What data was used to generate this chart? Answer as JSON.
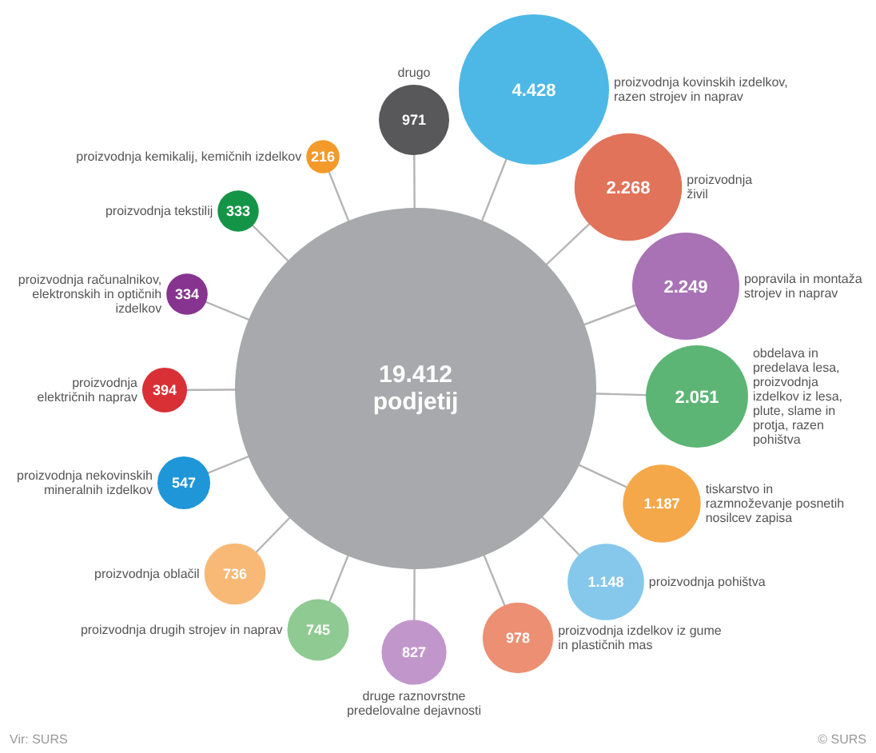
{
  "chart_data": {
    "type": "other",
    "categories": [
      "drugo",
      "proizvodnja kovinskih izdelkov, razen strojev in naprav",
      "proizvodnja živil",
      "popravila in montaža strojev in naprav",
      "obdelava in predelava lesa, proizvodnja izdelkov iz lesa, plute, slame in protja, razen pohištva",
      "tiskarstvo in razmnoževanje posnetih nosilcev zapisa",
      "proizvodnja pohištva",
      "proizvodnja izdelkov iz gume in plastičnih mas",
      "druge raznovrstne predelovalne dejavnosti",
      "proizvodnja drugih strojev in naprav",
      "proizvodnja oblačil",
      "proizvodnja nekovinskih mineralnih izdelkov",
      "proizvodnja električnih naprav",
      "proizvodnja računalnikov, elektronskih in optičnih izdelkov",
      "proizvodnja tekstilij",
      "proizvodnja kemikalij, kemičnih izdelkov"
    ],
    "values": [
      971,
      4428,
      2268,
      2249,
      2051,
      1187,
      1148,
      978,
      827,
      745,
      736,
      547,
      394,
      334,
      333,
      216
    ],
    "value_labels": [
      "971",
      "4.428",
      "2.268",
      "2.249",
      "2.051",
      "1.187",
      "1.148",
      "978",
      "827",
      "745",
      "736",
      "547",
      "394",
      "334",
      "333",
      "216"
    ],
    "colors": [
      "#58585a",
      "#4db8e6",
      "#e0735a",
      "#a872b5",
      "#5cb574",
      "#f5a84a",
      "#85c8ec",
      "#ec8f72",
      "#c197cb",
      "#8fca92",
      "#f7b975",
      "#1e96d8",
      "#d93035",
      "#86348f",
      "#149447",
      "#f39a2a"
    ],
    "annotations": [
      "19.412 podjetij",
      "Vir: SURS",
      "© SURS"
    ]
  }
}
